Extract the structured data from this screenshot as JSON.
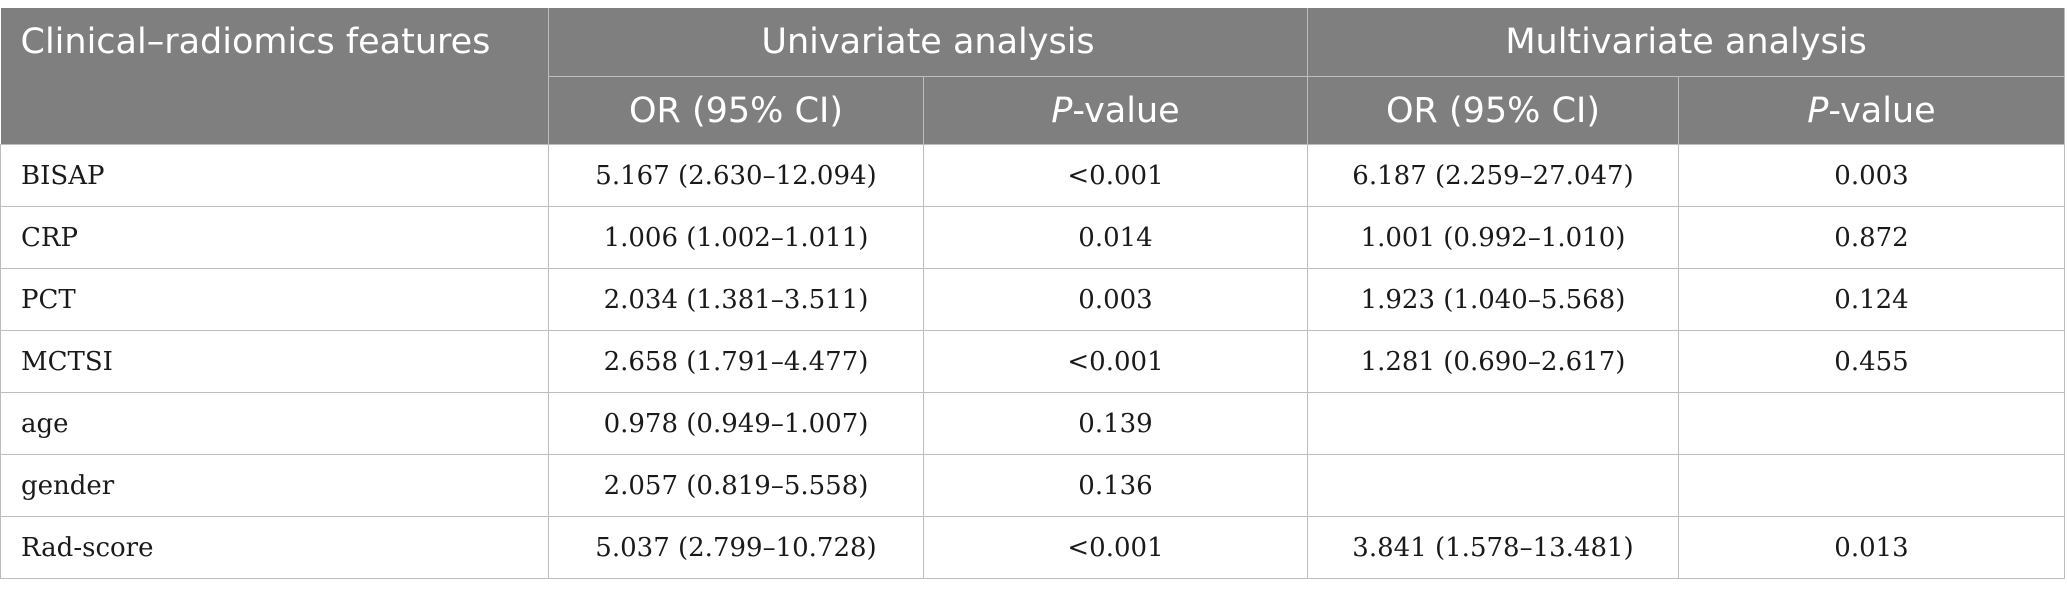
{
  "table": {
    "header": {
      "feature_col": "Clinical–radiomics features",
      "univariate_group": "Univariate analysis",
      "multivariate_group": "Multivariate analysis",
      "or_label": "OR (95% CI)",
      "p_prefix": "P",
      "p_suffix": "-value"
    },
    "rows": [
      {
        "feature": "BISAP",
        "uni_or": "5.167 (2.630–12.094)",
        "uni_p": "<0.001",
        "multi_or": "6.187 (2.259–27.047)",
        "multi_p": "0.003"
      },
      {
        "feature": "CRP",
        "uni_or": "1.006 (1.002–1.011)",
        "uni_p": "0.014",
        "multi_or": "1.001 (0.992–1.010)",
        "multi_p": "0.872"
      },
      {
        "feature": "PCT",
        "uni_or": "2.034 (1.381–3.511)",
        "uni_p": "0.003",
        "multi_or": "1.923 (1.040–5.568)",
        "multi_p": "0.124"
      },
      {
        "feature": "MCTSI",
        "uni_or": "2.658 (1.791–4.477)",
        "uni_p": "<0.001",
        "multi_or": "1.281 (0.690–2.617)",
        "multi_p": "0.455"
      },
      {
        "feature": "age",
        "uni_or": "0.978 (0.949–1.007)",
        "uni_p": "0.139",
        "multi_or": "",
        "multi_p": ""
      },
      {
        "feature": "gender",
        "uni_or": "2.057 (0.819–5.558)",
        "uni_p": "0.136",
        "multi_or": "",
        "multi_p": ""
      },
      {
        "feature": "Rad-score",
        "uni_or": "5.037 (2.799–10.728)",
        "uni_p": "<0.001",
        "multi_or": "3.841 (1.578–13.481)",
        "multi_p": "0.013"
      }
    ]
  }
}
